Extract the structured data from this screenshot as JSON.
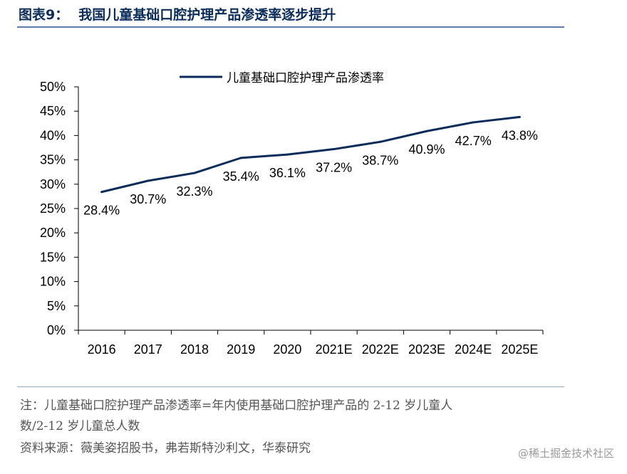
{
  "title": {
    "label": "图表9：",
    "text": "我国儿童基础口腔护理产品渗透率逐步提升"
  },
  "notes": {
    "line1": "注：儿童基础口腔护理产品渗透率=年内使用基础口腔护理产品的 2-12 岁儿童人",
    "line2": "数/2-12 岁儿童总人数",
    "source": "资料来源：薇美姿招股书，弗若斯特沙利文，华泰研究"
  },
  "watermark": "@稀土掘金技术社区",
  "colors": {
    "title": "#0b2c5a",
    "line": "#0b2c5a",
    "axis": "#000000"
  },
  "chart_data": {
    "type": "line",
    "title": "",
    "xlabel": "",
    "ylabel": "",
    "categories": [
      "2016",
      "2017",
      "2018",
      "2019",
      "2020",
      "2021E",
      "2022E",
      "2023E",
      "2024E",
      "2025E"
    ],
    "series": [
      {
        "name": "儿童基础口腔护理产品渗透率",
        "values": [
          28.4,
          30.7,
          32.3,
          35.4,
          36.1,
          37.2,
          38.7,
          40.9,
          42.7,
          43.8
        ],
        "data_labels": [
          "28.4%",
          "30.7%",
          "32.3%",
          "35.4%",
          "36.1%",
          "37.2%",
          "38.7%",
          "40.9%",
          "42.7%",
          "43.8%"
        ]
      }
    ],
    "ylim": [
      0,
      50
    ],
    "yticks": [
      0,
      5,
      10,
      15,
      20,
      25,
      30,
      35,
      40,
      45,
      50
    ],
    "ytick_labels": [
      "0%",
      "5%",
      "10%",
      "15%",
      "20%",
      "25%",
      "30%",
      "35%",
      "40%",
      "45%",
      "50%"
    ],
    "grid": false,
    "legend_position": "top-center"
  }
}
